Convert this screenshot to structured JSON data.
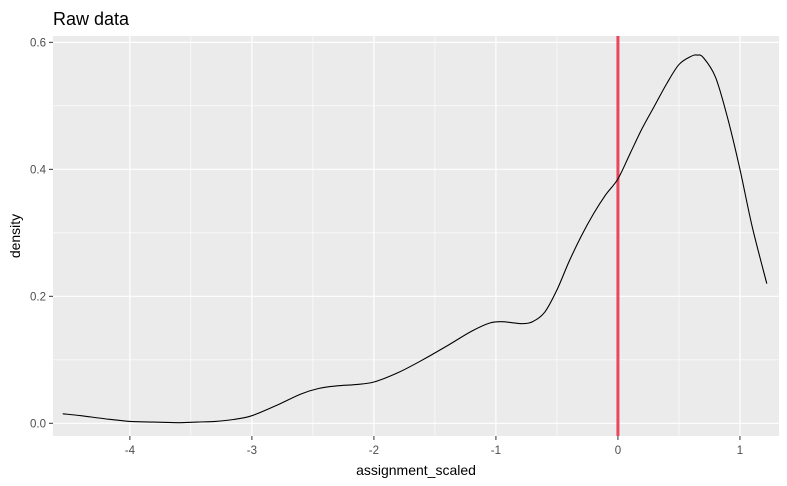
{
  "chart_data": {
    "type": "line",
    "title": "Raw data",
    "xlabel": "assignment_scaled",
    "ylabel": "density",
    "xlim": [
      -4.63,
      1.32
    ],
    "ylim": [
      -0.02,
      0.61
    ],
    "x_ticks": [
      -4,
      -3,
      -2,
      -1,
      0,
      1
    ],
    "y_ticks": [
      0.0,
      0.2,
      0.4,
      0.6
    ],
    "y_tick_labels": [
      "0.0",
      "0.2",
      "0.4",
      "0.6"
    ],
    "grid": true,
    "vline": {
      "x": 0,
      "color": "#e8475f"
    },
    "series": [
      {
        "line_color": "#000000",
        "x": [
          -4.55,
          -4.4,
          -4.2,
          -4.0,
          -3.8,
          -3.6,
          -3.45,
          -3.3,
          -3.15,
          -3.0,
          -2.8,
          -2.6,
          -2.45,
          -2.3,
          -2.15,
          -2.0,
          -1.8,
          -1.6,
          -1.4,
          -1.2,
          -1.05,
          -0.95,
          -0.85,
          -0.78,
          -0.7,
          -0.6,
          -0.5,
          -0.4,
          -0.3,
          -0.2,
          -0.1,
          0.0,
          0.1,
          0.2,
          0.3,
          0.4,
          0.5,
          0.6,
          0.65,
          0.7,
          0.8,
          0.9,
          1.0,
          1.1,
          1.22
        ],
        "y": [
          0.015,
          0.012,
          0.007,
          0.003,
          0.002,
          0.001,
          0.002,
          0.003,
          0.006,
          0.012,
          0.028,
          0.046,
          0.055,
          0.059,
          0.061,
          0.065,
          0.08,
          0.1,
          0.122,
          0.145,
          0.158,
          0.16,
          0.158,
          0.157,
          0.16,
          0.175,
          0.21,
          0.255,
          0.295,
          0.33,
          0.36,
          0.385,
          0.425,
          0.465,
          0.5,
          0.535,
          0.565,
          0.578,
          0.58,
          0.576,
          0.545,
          0.48,
          0.4,
          0.31,
          0.22
        ]
      }
    ]
  }
}
